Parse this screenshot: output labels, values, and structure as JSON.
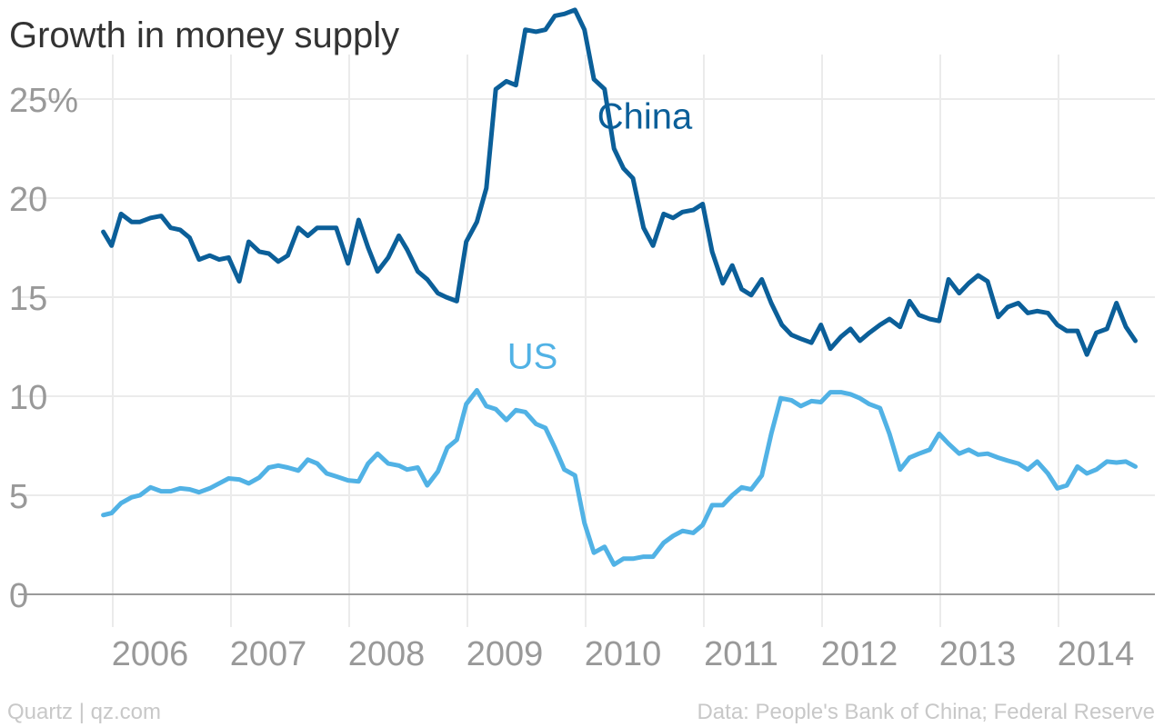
{
  "chart_data": {
    "type": "line",
    "title": "Growth in money supply",
    "xlabel": "",
    "ylabel": "",
    "xlim": [
      2005.9,
      2014.7
    ],
    "ylim": [
      -0.5,
      29.5
    ],
    "grid": true,
    "y_ticks": [
      {
        "value": 25,
        "label": "25%"
      },
      {
        "value": 20,
        "label": "20"
      },
      {
        "value": 15,
        "label": "15"
      },
      {
        "value": 10,
        "label": "10"
      },
      {
        "value": 5,
        "label": "5"
      },
      {
        "value": 0,
        "label": "0"
      }
    ],
    "x_ticks": [
      {
        "value": 2006,
        "label": "2006"
      },
      {
        "value": 2007,
        "label": "2007"
      },
      {
        "value": 2008,
        "label": "2008"
      },
      {
        "value": 2009,
        "label": "2009"
      },
      {
        "value": 2010,
        "label": "2010"
      },
      {
        "value": 2011,
        "label": "2011"
      },
      {
        "value": 2012,
        "label": "2012"
      },
      {
        "value": 2013,
        "label": "2013"
      },
      {
        "value": 2014,
        "label": "2014"
      }
    ],
    "series": [
      {
        "name": "China",
        "color": "#0b5f99",
        "label_at": {
          "x": 2010.5,
          "y": 23.5
        },
        "points": [
          [
            2005.92,
            18.3
          ],
          [
            2005.99,
            17.6
          ],
          [
            2006.07,
            19.2
          ],
          [
            2006.16,
            18.8
          ],
          [
            2006.23,
            18.8
          ],
          [
            2006.32,
            19.0
          ],
          [
            2006.41,
            19.1
          ],
          [
            2006.49,
            18.5
          ],
          [
            2006.57,
            18.4
          ],
          [
            2006.65,
            18.0
          ],
          [
            2006.73,
            16.9
          ],
          [
            2006.82,
            17.1
          ],
          [
            2006.9,
            16.9
          ],
          [
            2006.98,
            17.0
          ],
          [
            2007.07,
            15.8
          ],
          [
            2007.15,
            17.8
          ],
          [
            2007.24,
            17.3
          ],
          [
            2007.32,
            17.2
          ],
          [
            2007.4,
            16.8
          ],
          [
            2007.48,
            17.1
          ],
          [
            2007.57,
            18.5
          ],
          [
            2007.65,
            18.1
          ],
          [
            2007.73,
            18.5
          ],
          [
            2007.81,
            18.5
          ],
          [
            2007.89,
            18.5
          ],
          [
            2007.99,
            16.7
          ],
          [
            2008.08,
            18.9
          ],
          [
            2008.16,
            17.5
          ],
          [
            2008.24,
            16.3
          ],
          [
            2008.33,
            17.0
          ],
          [
            2008.42,
            18.1
          ],
          [
            2008.49,
            17.4
          ],
          [
            2008.58,
            16.3
          ],
          [
            2008.66,
            15.9
          ],
          [
            2008.75,
            15.2
          ],
          [
            2008.82,
            15.0
          ],
          [
            2008.91,
            14.8
          ],
          [
            2008.99,
            17.8
          ],
          [
            2009.08,
            18.8
          ],
          [
            2009.16,
            20.5
          ],
          [
            2009.24,
            25.5
          ],
          [
            2009.33,
            25.9
          ],
          [
            2009.41,
            25.7
          ],
          [
            2009.49,
            28.5
          ],
          [
            2009.58,
            28.4
          ],
          [
            2009.66,
            28.5
          ],
          [
            2009.74,
            29.2
          ],
          [
            2009.82,
            29.3
          ],
          [
            2009.91,
            29.5
          ],
          [
            2009.99,
            28.5
          ],
          [
            2010.07,
            26.0
          ],
          [
            2010.16,
            25.5
          ],
          [
            2010.24,
            22.5
          ],
          [
            2010.32,
            21.5
          ],
          [
            2010.4,
            21.0
          ],
          [
            2010.49,
            18.5
          ],
          [
            2010.57,
            17.6
          ],
          [
            2010.66,
            19.2
          ],
          [
            2010.74,
            19.0
          ],
          [
            2010.82,
            19.3
          ],
          [
            2010.91,
            19.4
          ],
          [
            2010.99,
            19.7
          ],
          [
            2011.07,
            17.3
          ],
          [
            2011.16,
            15.7
          ],
          [
            2011.24,
            16.6
          ],
          [
            2011.32,
            15.4
          ],
          [
            2011.4,
            15.1
          ],
          [
            2011.49,
            15.9
          ],
          [
            2011.57,
            14.7
          ],
          [
            2011.66,
            13.6
          ],
          [
            2011.74,
            13.1
          ],
          [
            2011.82,
            12.9
          ],
          [
            2011.91,
            12.7
          ],
          [
            2011.99,
            13.6
          ],
          [
            2012.07,
            12.4
          ],
          [
            2012.16,
            13.0
          ],
          [
            2012.24,
            13.4
          ],
          [
            2012.32,
            12.8
          ],
          [
            2012.4,
            13.2
          ],
          [
            2012.49,
            13.6
          ],
          [
            2012.57,
            13.9
          ],
          [
            2012.66,
            13.5
          ],
          [
            2012.74,
            14.8
          ],
          [
            2012.82,
            14.1
          ],
          [
            2012.91,
            13.9
          ],
          [
            2012.99,
            13.8
          ],
          [
            2013.07,
            15.9
          ],
          [
            2013.16,
            15.2
          ],
          [
            2013.24,
            15.7
          ],
          [
            2013.32,
            16.1
          ],
          [
            2013.4,
            15.8
          ],
          [
            2013.49,
            14.0
          ],
          [
            2013.57,
            14.5
          ],
          [
            2013.66,
            14.7
          ],
          [
            2013.74,
            14.2
          ],
          [
            2013.82,
            14.3
          ],
          [
            2013.91,
            14.2
          ],
          [
            2013.99,
            13.6
          ],
          [
            2014.07,
            13.3
          ],
          [
            2014.16,
            13.3
          ],
          [
            2014.24,
            12.1
          ],
          [
            2014.32,
            13.2
          ],
          [
            2014.41,
            13.4
          ],
          [
            2014.49,
            14.7
          ],
          [
            2014.57,
            13.5
          ],
          [
            2014.65,
            12.8
          ]
        ]
      },
      {
        "name": "US",
        "color": "#51b2e5",
        "label_at": {
          "x": 2009.55,
          "y": 11.4
        },
        "points": [
          [
            2005.92,
            4.0
          ],
          [
            2005.99,
            4.1
          ],
          [
            2006.07,
            4.6
          ],
          [
            2006.16,
            4.9
          ],
          [
            2006.23,
            5.0
          ],
          [
            2006.32,
            5.4
          ],
          [
            2006.41,
            5.2
          ],
          [
            2006.49,
            5.2
          ],
          [
            2006.57,
            5.35
          ],
          [
            2006.65,
            5.3
          ],
          [
            2006.73,
            5.15
          ],
          [
            2006.82,
            5.35
          ],
          [
            2006.9,
            5.6
          ],
          [
            2006.98,
            5.85
          ],
          [
            2007.07,
            5.8
          ],
          [
            2007.15,
            5.6
          ],
          [
            2007.24,
            5.9
          ],
          [
            2007.32,
            6.4
          ],
          [
            2007.4,
            6.5
          ],
          [
            2007.48,
            6.4
          ],
          [
            2007.57,
            6.25
          ],
          [
            2007.65,
            6.8
          ],
          [
            2007.73,
            6.6
          ],
          [
            2007.81,
            6.1
          ],
          [
            2007.89,
            5.95
          ],
          [
            2007.99,
            5.75
          ],
          [
            2008.08,
            5.7
          ],
          [
            2008.16,
            6.6
          ],
          [
            2008.24,
            7.1
          ],
          [
            2008.33,
            6.6
          ],
          [
            2008.42,
            6.5
          ],
          [
            2008.49,
            6.3
          ],
          [
            2008.58,
            6.4
          ],
          [
            2008.66,
            5.5
          ],
          [
            2008.75,
            6.2
          ],
          [
            2008.83,
            7.4
          ],
          [
            2008.91,
            7.8
          ],
          [
            2008.99,
            9.6
          ],
          [
            2009.08,
            10.3
          ],
          [
            2009.16,
            9.5
          ],
          [
            2009.24,
            9.35
          ],
          [
            2009.33,
            8.8
          ],
          [
            2009.41,
            9.3
          ],
          [
            2009.49,
            9.2
          ],
          [
            2009.58,
            8.6
          ],
          [
            2009.66,
            8.4
          ],
          [
            2009.74,
            7.4
          ],
          [
            2009.82,
            6.3
          ],
          [
            2009.91,
            6.0
          ],
          [
            2009.99,
            3.6
          ],
          [
            2010.07,
            2.1
          ],
          [
            2010.16,
            2.4
          ],
          [
            2010.24,
            1.5
          ],
          [
            2010.32,
            1.8
          ],
          [
            2010.4,
            1.8
          ],
          [
            2010.49,
            1.9
          ],
          [
            2010.57,
            1.9
          ],
          [
            2010.66,
            2.6
          ],
          [
            2010.74,
            2.95
          ],
          [
            2010.82,
            3.2
          ],
          [
            2010.91,
            3.1
          ],
          [
            2010.99,
            3.5
          ],
          [
            2011.07,
            4.5
          ],
          [
            2011.16,
            4.5
          ],
          [
            2011.24,
            5.0
          ],
          [
            2011.32,
            5.4
          ],
          [
            2011.4,
            5.3
          ],
          [
            2011.49,
            6.0
          ],
          [
            2011.57,
            8.1
          ],
          [
            2011.65,
            9.9
          ],
          [
            2011.74,
            9.8
          ],
          [
            2011.82,
            9.5
          ],
          [
            2011.91,
            9.75
          ],
          [
            2011.99,
            9.7
          ],
          [
            2012.07,
            10.2
          ],
          [
            2012.16,
            10.2
          ],
          [
            2012.24,
            10.1
          ],
          [
            2012.32,
            9.9
          ],
          [
            2012.4,
            9.6
          ],
          [
            2012.49,
            9.4
          ],
          [
            2012.57,
            8.1
          ],
          [
            2012.66,
            6.3
          ],
          [
            2012.74,
            6.9
          ],
          [
            2012.82,
            7.1
          ],
          [
            2012.91,
            7.3
          ],
          [
            2012.99,
            8.1
          ],
          [
            2013.07,
            7.6
          ],
          [
            2013.16,
            7.1
          ],
          [
            2013.24,
            7.3
          ],
          [
            2013.32,
            7.05
          ],
          [
            2013.4,
            7.1
          ],
          [
            2013.49,
            6.9
          ],
          [
            2013.57,
            6.75
          ],
          [
            2013.66,
            6.6
          ],
          [
            2013.74,
            6.3
          ],
          [
            2013.82,
            6.7
          ],
          [
            2013.91,
            6.1
          ],
          [
            2013.99,
            5.35
          ],
          [
            2014.07,
            5.5
          ],
          [
            2014.16,
            6.45
          ],
          [
            2014.24,
            6.1
          ],
          [
            2014.32,
            6.3
          ],
          [
            2014.41,
            6.7
          ],
          [
            2014.49,
            6.65
          ],
          [
            2014.57,
            6.7
          ],
          [
            2014.65,
            6.45
          ]
        ]
      }
    ]
  },
  "footer": {
    "left": "Quartz | qz.com",
    "right": "Data: People's Bank of China; Federal Reserve"
  }
}
